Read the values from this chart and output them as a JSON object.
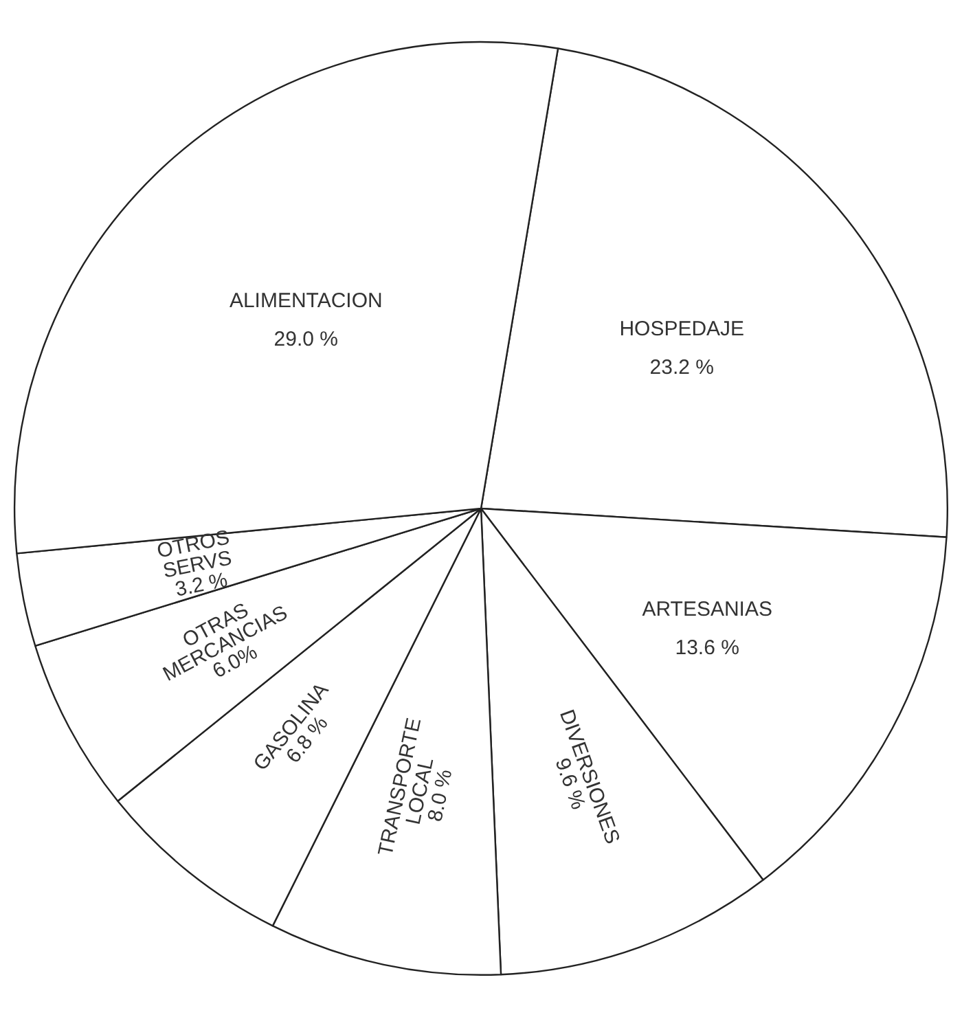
{
  "chart_data": {
    "type": "pie",
    "categories": [
      "HOSPEDAJE",
      "ARTESANIAS",
      "DIVERSIONES",
      "TRANSPORTE LOCAL",
      "GASOLINA",
      "OTRAS MERCANCIAS",
      "OTROS SERVS",
      "ALIMENTACION"
    ],
    "values": [
      23.2,
      13.6,
      9.6,
      8.0,
      6.8,
      6.0,
      3.2,
      29.0
    ],
    "value_labels": [
      "23.2 %",
      "13.6 %",
      "9.6 %",
      "8.0 %",
      "6.8 %",
      "6.0%",
      "3.2 %",
      "29.0 %"
    ],
    "colors": [
      "#ffffff",
      "#ffffff",
      "#ffffff",
      "#ffffff",
      "#ffffff",
      "#ffffff",
      "#ffffff",
      "#ffffff"
    ]
  }
}
